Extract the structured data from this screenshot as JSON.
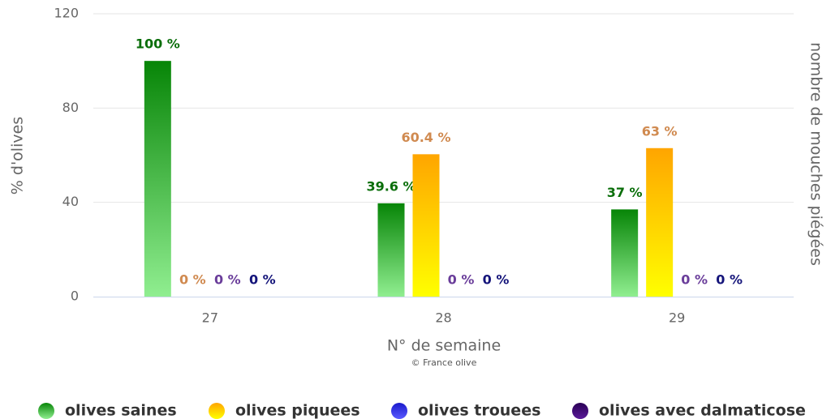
{
  "chart_data": {
    "type": "bar",
    "categories": [
      "27",
      "28",
      "29"
    ],
    "series": [
      {
        "name": "olives saines",
        "color": [
          "#078507",
          "#90ee90"
        ],
        "label_color": "#0a6e0a",
        "values": [
          100,
          39.6,
          37
        ],
        "value_labels": [
          "100 %",
          "39.6 %",
          "37 %"
        ]
      },
      {
        "name": "olives piquees",
        "color": [
          "#ffa500",
          "#ffff00"
        ],
        "label_color": "#d08a50",
        "values": [
          0,
          60.4,
          63
        ],
        "value_labels": [
          "0 %",
          "60.4 %",
          "63 %"
        ]
      },
      {
        "name": "olives trouees",
        "color": [
          "#1a1acc",
          "#5a5aff"
        ],
        "label_color": "#6a3d9a",
        "values": [
          0,
          0,
          0
        ],
        "value_labels": [
          "0 %",
          "0 %",
          "0 %"
        ]
      },
      {
        "name": "olives avec dalmaticose",
        "color": [
          "#2a0055",
          "#5a1a99"
        ],
        "label_color": "#14147a",
        "values": [
          0,
          0,
          0
        ],
        "value_labels": [
          "0 %",
          "0 %",
          "0 %"
        ]
      }
    ],
    "ylim": [
      0,
      120
    ],
    "yticks": [
      0,
      40,
      80,
      120
    ],
    "grid": true,
    "y_label": "% d'olives",
    "y2_label": "nombre de mouches piégées",
    "x_label": "N° de semaine",
    "credit": "© France olive",
    "legend": "bottom"
  }
}
